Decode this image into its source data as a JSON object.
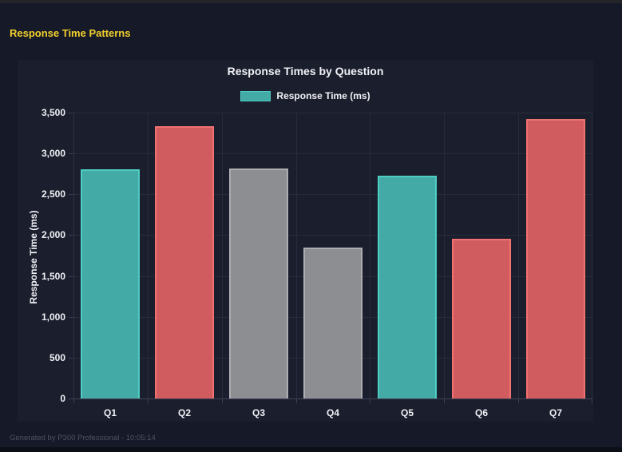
{
  "header": {
    "title": "Response Time Patterns"
  },
  "footer": {
    "text": "Generated by P300 Professional - 10:05:14"
  },
  "chart": {
    "title": "Response Times by Question",
    "legend_label": "Response Time (ms)"
  },
  "chart_data": {
    "type": "bar",
    "title": "Response Times by Question",
    "categories": [
      "Q1",
      "Q2",
      "Q3",
      "Q4",
      "Q5",
      "Q6",
      "Q7"
    ],
    "series": [
      {
        "name": "Response Time (ms)",
        "values": [
          2810,
          3330,
          2815,
          1845,
          2730,
          1960,
          3420
        ]
      }
    ],
    "xlabel": "",
    "ylabel": "Response Time (ms)",
    "ylim": [
      0,
      3500
    ],
    "ytick_step": 500,
    "grid": true,
    "legend_position": "top",
    "bar_colors": [
      {
        "fill": "#44AAA6",
        "border": "#4ECDC4"
      },
      {
        "fill": "#D15C5F",
        "border": "#F0716F"
      },
      {
        "fill": "#8D8E92",
        "border": "#ACADB1"
      },
      {
        "fill": "#8D8E92",
        "border": "#ACADB1"
      },
      {
        "fill": "#44AAA6",
        "border": "#4ECDC4"
      },
      {
        "fill": "#D15C5F",
        "border": "#F0716F"
      },
      {
        "fill": "#D15C5F",
        "border": "#F0716F"
      }
    ],
    "palette": {
      "teal": "#4ECDC4",
      "red": "#FF6B6B",
      "gray": "#AAAAAA"
    }
  },
  "theme": {
    "page_bg": "#161927",
    "top_strip_bg": "#232529",
    "bottom_strip_bg": "#0D0F16",
    "card_bg": "#1B1E2D",
    "header_color": "#F2D02E",
    "text_color": "#F0F1F5",
    "muted_color": "#4D5264",
    "grid_color": "#272B3A",
    "axis_color": "#3E4356"
  }
}
